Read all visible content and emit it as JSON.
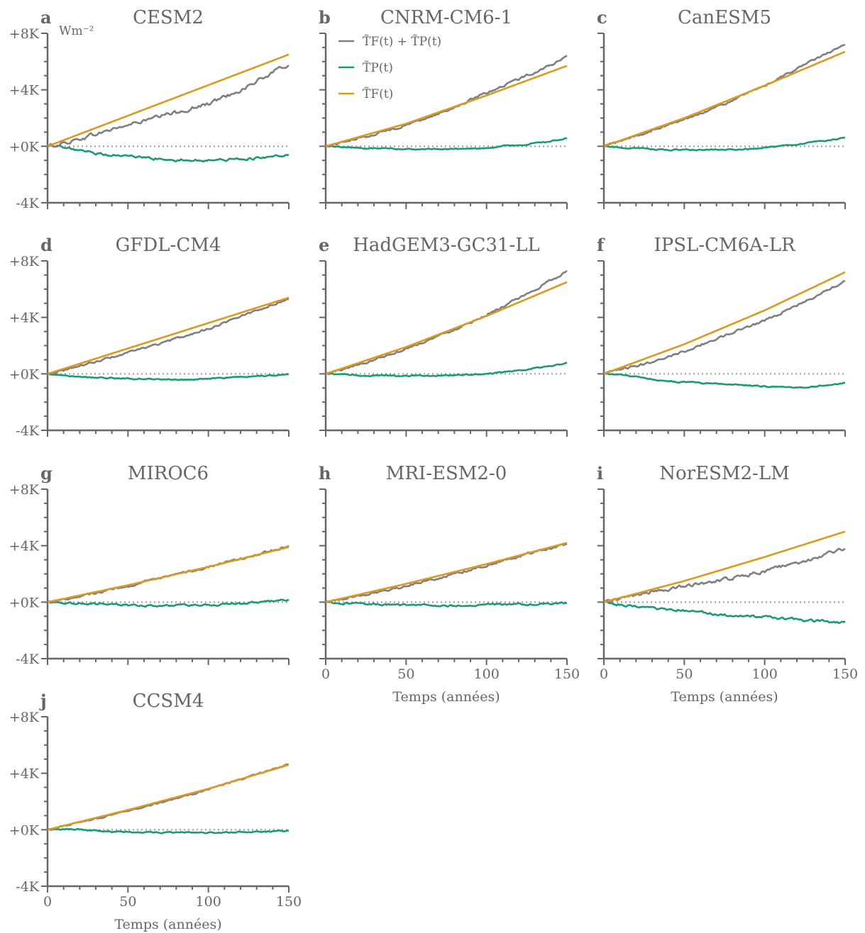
{
  "figure": {
    "unit_label": "Wm⁻²",
    "colors": {
      "total": "#7f7f7f",
      "pattern": "#1a9a76",
      "forcing": "#d99a1e",
      "zero_line": "#999999",
      "axis": "#666666"
    },
    "legend": [
      {
        "key": "total",
        "label": "T̃F(t) + T̃P(t)"
      },
      {
        "key": "pattern",
        "label": "T̃P(t)"
      },
      {
        "key": "forcing",
        "label": "T̃F(t)"
      }
    ]
  },
  "chart_data": [
    {
      "type": "line",
      "letter": "a",
      "title": "CESM2",
      "ylim": [
        -4,
        8
      ],
      "yticks": [
        "-4K",
        "+0K",
        "+4K",
        "+8K"
      ],
      "xlim": [
        0,
        150
      ],
      "xticks": [
        "0",
        "50",
        "100",
        "150"
      ],
      "xlabel": "Temps (années)",
      "show_xticklabels": false,
      "show_yticklabels": true,
      "show_legend": false,
      "show_unit": true,
      "series": [
        {
          "key": "forcing",
          "x": [
            0,
            150
          ],
          "y": [
            0,
            6.5
          ],
          "noise": 0
        },
        {
          "key": "total",
          "x": [
            0,
            10,
            25,
            40,
            60,
            80,
            100,
            120,
            140,
            150
          ],
          "y": [
            0,
            0.2,
            0.7,
            1.2,
            1.8,
            2.4,
            3.0,
            4.0,
            5.2,
            5.8
          ],
          "noise": 0.12
        },
        {
          "key": "pattern",
          "x": [
            0,
            10,
            20,
            30,
            50,
            70,
            90,
            110,
            130,
            145,
            150
          ],
          "y": [
            0,
            -0.1,
            -0.35,
            -0.5,
            -0.7,
            -0.9,
            -1.0,
            -0.95,
            -0.85,
            -0.7,
            -0.65
          ],
          "noise": 0.08
        }
      ]
    },
    {
      "type": "line",
      "letter": "b",
      "title": "CNRM-CM6-1",
      "ylim": [
        -4,
        8
      ],
      "yticks": [
        "-4K",
        "+0K",
        "+4K",
        "+8K"
      ],
      "xlim": [
        0,
        150
      ],
      "xticks": [
        "0",
        "50",
        "100",
        "150"
      ],
      "xlabel": "Temps (années)",
      "show_xticklabels": false,
      "show_yticklabels": false,
      "show_legend": true,
      "show_unit": false,
      "series": [
        {
          "key": "forcing",
          "x": [
            0,
            50,
            100,
            150
          ],
          "y": [
            0,
            1.6,
            3.6,
            5.7
          ],
          "noise": 0
        },
        {
          "key": "total",
          "x": [
            0,
            25,
            50,
            75,
            100,
            125,
            150
          ],
          "y": [
            0,
            0.7,
            1.5,
            2.5,
            3.8,
            5.0,
            6.3
          ],
          "noise": 0.07
        },
        {
          "key": "pattern",
          "x": [
            0,
            20,
            50,
            80,
            100,
            110,
            130,
            150
          ],
          "y": [
            0,
            -0.12,
            -0.2,
            -0.2,
            -0.15,
            0.0,
            0.2,
            0.55
          ],
          "noise": 0.04
        }
      ]
    },
    {
      "type": "line",
      "letter": "c",
      "title": "CanESM5",
      "ylim": [
        -4,
        8
      ],
      "yticks": [
        "-4K",
        "+0K",
        "+4K",
        "+8K"
      ],
      "xlim": [
        0,
        150
      ],
      "xticks": [
        "0",
        "50",
        "100",
        "150"
      ],
      "xlabel": "Temps (années)",
      "show_xticklabels": false,
      "show_yticklabels": false,
      "show_legend": false,
      "show_unit": false,
      "series": [
        {
          "key": "forcing",
          "x": [
            0,
            50,
            100,
            150
          ],
          "y": [
            0,
            2.0,
            4.3,
            6.7
          ],
          "noise": 0
        },
        {
          "key": "total",
          "x": [
            0,
            25,
            50,
            75,
            100,
            125,
            150
          ],
          "y": [
            0,
            0.9,
            1.9,
            3.0,
            4.3,
            5.8,
            7.2
          ],
          "noise": 0.06
        },
        {
          "key": "pattern",
          "x": [
            0,
            20,
            40,
            60,
            90,
            110,
            130,
            150
          ],
          "y": [
            0,
            -0.15,
            -0.25,
            -0.25,
            -0.2,
            0.0,
            0.3,
            0.6
          ],
          "noise": 0.04
        }
      ]
    },
    {
      "type": "line",
      "letter": "d",
      "title": "GFDL-CM4",
      "ylim": [
        -4,
        8
      ],
      "yticks": [
        "-4K",
        "+0K",
        "+4K",
        "+8K"
      ],
      "xlim": [
        0,
        150
      ],
      "xticks": [
        "0",
        "50",
        "100",
        "150"
      ],
      "xlabel": "Temps (années)",
      "show_xticklabels": false,
      "show_yticklabels": true,
      "show_legend": false,
      "show_unit": false,
      "series": [
        {
          "key": "forcing",
          "x": [
            0,
            50,
            100,
            150
          ],
          "y": [
            0,
            1.8,
            3.6,
            5.4
          ],
          "noise": 0
        },
        {
          "key": "total",
          "x": [
            0,
            25,
            50,
            75,
            100,
            125,
            150
          ],
          "y": [
            0,
            0.7,
            1.5,
            2.3,
            3.2,
            4.3,
            5.3
          ],
          "noise": 0.06
        },
        {
          "key": "pattern",
          "x": [
            0,
            10,
            30,
            60,
            90,
            110,
            130,
            150
          ],
          "y": [
            0,
            -0.15,
            -0.25,
            -0.35,
            -0.4,
            -0.3,
            -0.15,
            -0.05
          ],
          "noise": 0.04
        }
      ]
    },
    {
      "type": "line",
      "letter": "e",
      "title": "HadGEM3-GC31-LL",
      "ylim": [
        -4,
        8
      ],
      "yticks": [
        "-4K",
        "+0K",
        "+4K",
        "+8K"
      ],
      "xlim": [
        0,
        150
      ],
      "xticks": [
        "0",
        "50",
        "100",
        "150"
      ],
      "xlabel": "Temps (années)",
      "show_xticklabels": false,
      "show_yticklabels": false,
      "show_legend": false,
      "show_unit": false,
      "series": [
        {
          "key": "forcing",
          "x": [
            0,
            50,
            100,
            150
          ],
          "y": [
            0,
            1.9,
            4.1,
            6.5
          ],
          "noise": 0
        },
        {
          "key": "total",
          "x": [
            0,
            25,
            50,
            75,
            100,
            125,
            150
          ],
          "y": [
            0,
            0.8,
            1.8,
            2.9,
            4.2,
            5.6,
            7.3
          ],
          "noise": 0.07
        },
        {
          "key": "pattern",
          "x": [
            0,
            20,
            50,
            80,
            100,
            120,
            140,
            150
          ],
          "y": [
            0,
            -0.1,
            -0.15,
            -0.1,
            0.0,
            0.25,
            0.55,
            0.8
          ],
          "noise": 0.04
        }
      ]
    },
    {
      "type": "line",
      "letter": "f",
      "title": "IPSL-CM6A-LR",
      "ylim": [
        -4,
        8
      ],
      "yticks": [
        "-4K",
        "+0K",
        "+4K",
        "+8K"
      ],
      "xlim": [
        0,
        150
      ],
      "xticks": [
        "0",
        "50",
        "100",
        "150"
      ],
      "xlabel": "Temps (années)",
      "show_xticklabels": false,
      "show_yticklabels": false,
      "show_legend": false,
      "show_unit": false,
      "series": [
        {
          "key": "forcing",
          "x": [
            0,
            50,
            100,
            150
          ],
          "y": [
            0,
            2.1,
            4.5,
            7.2
          ],
          "noise": 0
        },
        {
          "key": "total",
          "x": [
            0,
            25,
            50,
            75,
            100,
            125,
            150
          ],
          "y": [
            0,
            0.7,
            1.6,
            2.7,
            3.8,
            5.1,
            6.6
          ],
          "noise": 0.07
        },
        {
          "key": "pattern",
          "x": [
            0,
            10,
            30,
            50,
            80,
            110,
            125,
            140,
            150
          ],
          "y": [
            0,
            -0.05,
            -0.4,
            -0.6,
            -0.75,
            -0.95,
            -0.95,
            -0.75,
            -0.65
          ],
          "noise": 0.04
        }
      ]
    },
    {
      "type": "line",
      "letter": "g",
      "title": "MIROC6",
      "ylim": [
        -4,
        8
      ],
      "yticks": [
        "-4K",
        "+0K",
        "+4K",
        "+8K"
      ],
      "xlim": [
        0,
        150
      ],
      "xticks": [
        "0",
        "50",
        "100",
        "150"
      ],
      "xlabel": "Temps (années)",
      "show_xticklabels": false,
      "show_yticklabels": true,
      "show_legend": false,
      "show_unit": false,
      "series": [
        {
          "key": "forcing",
          "x": [
            0,
            50,
            100,
            150
          ],
          "y": [
            0,
            1.2,
            2.5,
            3.9
          ],
          "noise": 0
        },
        {
          "key": "total",
          "x": [
            0,
            25,
            50,
            75,
            100,
            125,
            150
          ],
          "y": [
            0,
            0.55,
            1.15,
            1.8,
            2.5,
            3.2,
            4.0
          ],
          "noise": 0.07
        },
        {
          "key": "pattern",
          "x": [
            0,
            20,
            50,
            80,
            100,
            120,
            140,
            150
          ],
          "y": [
            0,
            -0.1,
            -0.2,
            -0.25,
            -0.2,
            -0.1,
            0.1,
            0.15
          ],
          "noise": 0.06
        }
      ]
    },
    {
      "type": "line",
      "letter": "h",
      "title": "MRI-ESM2-0",
      "ylim": [
        -4,
        8
      ],
      "yticks": [
        "-4K",
        "+0K",
        "+4K",
        "+8K"
      ],
      "xlim": [
        0,
        150
      ],
      "xticks": [
        "0",
        "50",
        "100",
        "150"
      ],
      "xlabel": "Temps (années)",
      "show_xticklabels": true,
      "show_yticklabels": false,
      "show_legend": false,
      "show_unit": false,
      "series": [
        {
          "key": "forcing",
          "x": [
            0,
            50,
            100,
            150
          ],
          "y": [
            0,
            1.3,
            2.7,
            4.2
          ],
          "noise": 0
        },
        {
          "key": "total",
          "x": [
            0,
            25,
            50,
            75,
            100,
            125,
            150
          ],
          "y": [
            0,
            0.55,
            1.15,
            1.85,
            2.6,
            3.4,
            4.1
          ],
          "noise": 0.07
        },
        {
          "key": "pattern",
          "x": [
            0,
            15,
            30,
            50,
            80,
            110,
            150
          ],
          "y": [
            0,
            -0.1,
            -0.15,
            -0.2,
            -0.25,
            -0.15,
            -0.1
          ],
          "noise": 0.06
        }
      ]
    },
    {
      "type": "line",
      "letter": "i",
      "title": "NorESM2-LM",
      "ylim": [
        -4,
        8
      ],
      "yticks": [
        "-4K",
        "+0K",
        "+4K",
        "+8K"
      ],
      "xlim": [
        0,
        150
      ],
      "xticks": [
        "0",
        "50",
        "100",
        "150"
      ],
      "xlabel": "Temps (années)",
      "show_xticklabels": true,
      "show_yticklabels": false,
      "show_legend": false,
      "show_unit": false,
      "series": [
        {
          "key": "forcing",
          "x": [
            0,
            50,
            100,
            150
          ],
          "y": [
            0,
            1.5,
            3.2,
            5.0
          ],
          "noise": 0
        },
        {
          "key": "total",
          "x": [
            0,
            25,
            50,
            75,
            100,
            125,
            150
          ],
          "y": [
            0,
            0.6,
            1.1,
            1.6,
            2.2,
            2.9,
            3.8
          ],
          "noise": 0.1
        },
        {
          "key": "pattern",
          "x": [
            0,
            10,
            25,
            50,
            75,
            100,
            125,
            150
          ],
          "y": [
            0,
            -0.2,
            -0.4,
            -0.6,
            -0.9,
            -1.05,
            -1.3,
            -1.45
          ],
          "noise": 0.08
        }
      ]
    },
    {
      "type": "line",
      "letter": "j",
      "title": "CCSM4",
      "ylim": [
        -4,
        8
      ],
      "yticks": [
        "-4K",
        "+0K",
        "+4K",
        "+8K"
      ],
      "xlim": [
        0,
        150
      ],
      "xticks": [
        "0",
        "50",
        "100",
        "150"
      ],
      "xlabel": "Temps (années)",
      "show_xticklabels": true,
      "show_yticklabels": true,
      "show_legend": false,
      "show_unit": false,
      "series": [
        {
          "key": "forcing",
          "x": [
            0,
            50,
            100,
            150
          ],
          "y": [
            0,
            1.4,
            2.9,
            4.6
          ],
          "noise": 0
        },
        {
          "key": "total",
          "x": [
            0,
            25,
            50,
            75,
            100,
            125,
            150
          ],
          "y": [
            0,
            0.65,
            1.3,
            2.05,
            2.85,
            3.75,
            4.6
          ],
          "noise": 0.05
        },
        {
          "key": "pattern",
          "x": [
            0,
            15,
            40,
            70,
            100,
            130,
            150
          ],
          "y": [
            0,
            0.05,
            -0.15,
            -0.2,
            -0.2,
            -0.15,
            -0.1
          ],
          "noise": 0.04
        }
      ]
    }
  ]
}
